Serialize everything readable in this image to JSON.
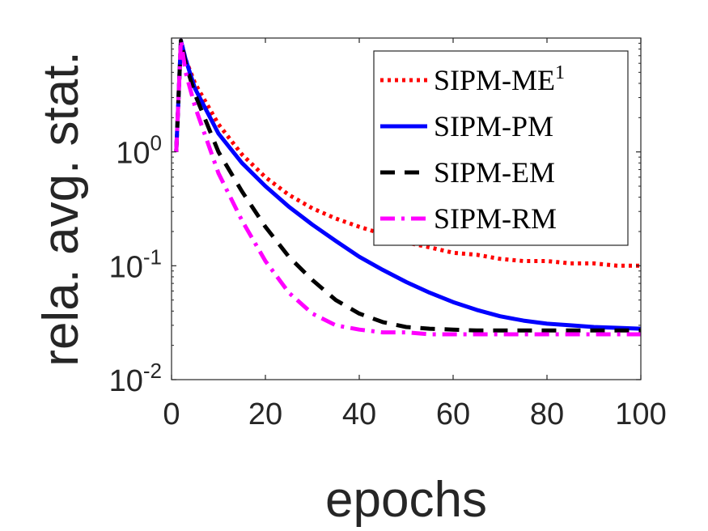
{
  "chart_data": {
    "type": "line",
    "title": "",
    "xlabel": "epochs",
    "ylabel": "rela. avg. stat.",
    "xlim": [
      0,
      100
    ],
    "ylim": [
      0.01,
      10
    ],
    "yscale": "log",
    "xticks": [
      "0",
      "20",
      "40",
      "60",
      "80",
      "100"
    ],
    "yticks": [
      {
        "base": "10",
        "exp": "0"
      },
      {
        "base": "10",
        "exp": "-1"
      },
      {
        "base": "10",
        "exp": "-2"
      }
    ],
    "legend_position": "top-right",
    "series": [
      {
        "name": "SIPM-ME",
        "name_sup": "1",
        "color": "#ff0000",
        "style": "dotted",
        "x": [
          1,
          2,
          3,
          5,
          10,
          15,
          20,
          25,
          30,
          35,
          40,
          45,
          50,
          55,
          60,
          65,
          70,
          75,
          80,
          85,
          90,
          95,
          100
        ],
        "y": [
          1.0,
          9.5,
          6.5,
          4.0,
          1.75,
          0.95,
          0.6,
          0.42,
          0.32,
          0.26,
          0.22,
          0.19,
          0.16,
          0.145,
          0.13,
          0.125,
          0.115,
          0.11,
          0.11,
          0.105,
          0.105,
          0.1,
          0.1
        ]
      },
      {
        "name": "SIPM-PM",
        "name_sup": "",
        "color": "#0000ff",
        "style": "solid",
        "x": [
          1,
          2,
          3,
          5,
          10,
          15,
          20,
          25,
          30,
          35,
          40,
          45,
          50,
          55,
          60,
          65,
          70,
          75,
          80,
          85,
          90,
          95,
          100
        ],
        "y": [
          1.0,
          9.5,
          6.5,
          3.6,
          1.45,
          0.8,
          0.5,
          0.33,
          0.23,
          0.165,
          0.12,
          0.092,
          0.072,
          0.058,
          0.048,
          0.041,
          0.036,
          0.033,
          0.031,
          0.03,
          0.029,
          0.0285,
          0.028
        ]
      },
      {
        "name": "SIPM-EM",
        "name_sup": "",
        "color": "#000000",
        "style": "dashed",
        "x": [
          1,
          2,
          3,
          5,
          10,
          15,
          20,
          25,
          30,
          35,
          40,
          45,
          50,
          55,
          60,
          65,
          70,
          75,
          80,
          85,
          90,
          95,
          100
        ],
        "y": [
          1.0,
          9.5,
          6.0,
          3.2,
          1.0,
          0.45,
          0.22,
          0.12,
          0.075,
          0.05,
          0.038,
          0.032,
          0.029,
          0.028,
          0.0275,
          0.027,
          0.027,
          0.027,
          0.027,
          0.027,
          0.027,
          0.027,
          0.027
        ]
      },
      {
        "name": "SIPM-RM",
        "name_sup": "",
        "color": "#ff00ff",
        "style": "dashdot",
        "x": [
          1,
          2,
          3,
          5,
          10,
          15,
          20,
          25,
          30,
          35,
          40,
          45,
          50,
          55,
          60,
          65,
          70,
          75,
          80,
          85,
          90,
          95,
          100
        ],
        "y": [
          1.0,
          9.5,
          5.0,
          2.5,
          0.65,
          0.25,
          0.11,
          0.058,
          0.038,
          0.03,
          0.0275,
          0.026,
          0.026,
          0.025,
          0.025,
          0.025,
          0.025,
          0.025,
          0.025,
          0.025,
          0.025,
          0.025,
          0.025
        ]
      }
    ]
  }
}
